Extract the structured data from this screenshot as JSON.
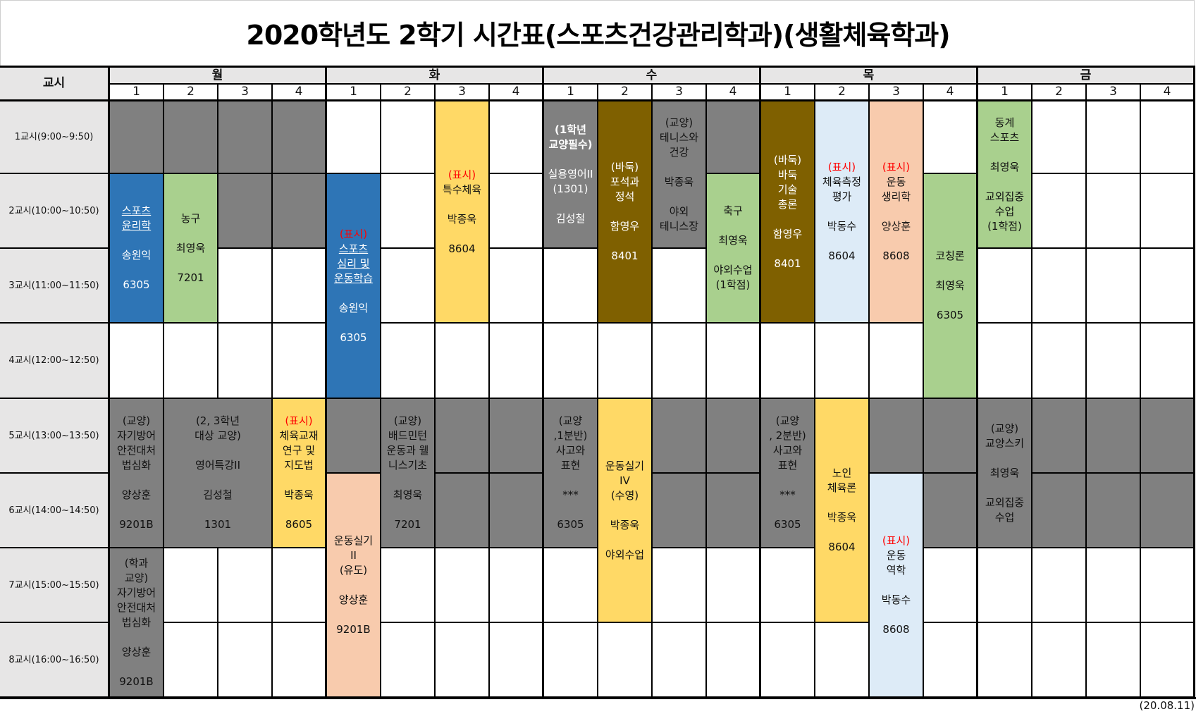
{
  "title": "2020학년도 2학기 시간표(스포츠건강관리학과)(생활체육학과)",
  "header": {
    "period_label": "교시",
    "days": [
      "월",
      "화",
      "수",
      "목",
      "금"
    ],
    "slots": [
      "1",
      "2",
      "3",
      "4"
    ]
  },
  "periods": [
    "1교시(9:00~9:50)",
    "2교시(10:00~10:50)",
    "3교시(11:00~11:50)",
    "4교시(12:00~12:50)",
    "5교시(13:00~13:50)",
    "6교시(14:00~14:50)",
    "7교시(15:00~15:50)",
    "8교시(16:00~16:50)"
  ],
  "colors": {
    "header_bg": "#e7e6e6",
    "unavailable_gray": "#808080",
    "blue": "#2e75b6",
    "green": "#a9d08e",
    "yellow": "#ffd966",
    "brown": "#7f6000",
    "light_blue": "#ddebf7",
    "salmon": "#f8cbad",
    "tag_red": "#ff0000"
  },
  "courses": [
    {
      "day": "월",
      "col": 1,
      "start": 2,
      "span": 2,
      "color": "blue",
      "tag": "",
      "name": "스포츠\n윤리학",
      "underline": true,
      "instructor": "송원익",
      "room": "6305"
    },
    {
      "day": "월",
      "col": 2,
      "start": 2,
      "span": 2,
      "color": "green",
      "tag": "",
      "name": "농구",
      "instructor": "최영욱",
      "room": "7201"
    },
    {
      "day": "화",
      "col": 1,
      "start": 2,
      "span": 3,
      "color": "blue",
      "tag": "(표시)",
      "name": "스포츠\n심리 및\n운동학습",
      "underline": true,
      "instructor": "송원익",
      "room": "6305"
    },
    {
      "day": "화",
      "col": 3,
      "start": 1,
      "span": 3,
      "color": "yellow",
      "tag": "(표시)",
      "name": "특수체육",
      "instructor": "박종욱",
      "room": "8604"
    },
    {
      "day": "수",
      "col": 1,
      "start": 1,
      "span": 2,
      "color": "gray-w",
      "tag": "",
      "note": "(1학년\n교양필수)",
      "name": "실용영어II\n(1301)",
      "instructor": "김성철",
      "room": ""
    },
    {
      "day": "수",
      "col": 2,
      "start": 1,
      "span": 3,
      "color": "brown",
      "tag": "",
      "name": "(바둑)\n포석과\n정석",
      "instructor": "함영우",
      "room": "8401"
    },
    {
      "day": "수",
      "col": 3,
      "start": 1,
      "span": 2,
      "color": "gray",
      "tag": "",
      "name": "(교양)\n테니스와\n건강",
      "instructor": "박종욱",
      "room": "야외\n테니스장"
    },
    {
      "day": "수",
      "col": 4,
      "start": 2,
      "span": 2,
      "color": "green",
      "tag": "",
      "name": "축구",
      "instructor": "최영욱",
      "room": "야외수업\n(1학점)"
    },
    {
      "day": "목",
      "col": 1,
      "start": 1,
      "span": 3,
      "color": "brown",
      "tag": "",
      "name": "(바둑)\n바둑\n기술\n총론",
      "instructor": "함영우",
      "room": "8401"
    },
    {
      "day": "목",
      "col": 2,
      "start": 1,
      "span": 3,
      "color": "lblue",
      "tag": "(표시)",
      "name": "체육측정\n평가",
      "instructor": "박동수",
      "room": "8604"
    },
    {
      "day": "목",
      "col": 3,
      "start": 1,
      "span": 3,
      "color": "salmon",
      "tag": "(표시)",
      "name": "운동\n생리학",
      "instructor": "양상훈",
      "room": "8608"
    },
    {
      "day": "목",
      "col": 4,
      "start": 2,
      "span": 3,
      "color": "green",
      "tag": "",
      "name": "코칭론",
      "instructor": "최영욱",
      "room": "6305"
    },
    {
      "day": "금",
      "col": 1,
      "start": 1,
      "span": 2,
      "color": "green",
      "tag": "",
      "name": "동계\n스포츠",
      "underline_part": "스포츠",
      "instructor": "최영욱",
      "room": "교외집중\n수업\n(1학점)"
    },
    {
      "day": "월",
      "col": 1,
      "start": 5,
      "span": 2,
      "color": "gray",
      "tag": "",
      "name": "(교양)\n자기방어\n안전대처\n법심화",
      "instructor": "양상훈",
      "room": "9201B"
    },
    {
      "day": "월",
      "col": 2,
      "colspan": 2,
      "start": 5,
      "span": 2,
      "color": "gray",
      "tag": "",
      "name": "(2, 3학년\n대상 교양)\n\n영어특강II",
      "instructor": "김성철",
      "room": "1301"
    },
    {
      "day": "월",
      "col": 4,
      "start": 5,
      "span": 2,
      "color": "yellow",
      "tag": "(표시)",
      "name": "체육교재\n연구 및\n지도법",
      "instructor": "박종욱",
      "room": "8605"
    },
    {
      "day": "월",
      "col": 1,
      "start": 7,
      "span": 2,
      "color": "gray",
      "tag": "",
      "name": "(학과\n교양)\n자기방어\n안전대처\n법심화",
      "instructor": "양상훈",
      "room": "9201B"
    },
    {
      "day": "화",
      "col": 1,
      "start": 6,
      "span": 3,
      "color": "salmon",
      "tag": "",
      "name": "운동실기\nII\n(유도)",
      "instructor": "양상훈",
      "room": "9201B"
    },
    {
      "day": "화",
      "col": 2,
      "start": 5,
      "span": 2,
      "color": "gray",
      "tag": "",
      "name": "(교양)\n배드민턴\n운동과 웰\n니스기초",
      "instructor": "최영욱",
      "room": "7201"
    },
    {
      "day": "수",
      "col": 1,
      "start": 5,
      "span": 2,
      "color": "gray",
      "tag": "",
      "name": "(교양\n,1분반)\n사고와\n표현",
      "instructor": "***",
      "room": "6305"
    },
    {
      "day": "수",
      "col": 2,
      "start": 5,
      "span": 3,
      "color": "yellow",
      "tag": "",
      "name": "운동실기\nIV\n(수영)",
      "instructor": "박종욱",
      "room": "야외수업"
    },
    {
      "day": "목",
      "col": 1,
      "start": 5,
      "span": 2,
      "color": "gray",
      "tag": "",
      "name": "(교양\n, 2분반)\n사고와\n표현",
      "instructor": "***",
      "room": "6305"
    },
    {
      "day": "목",
      "col": 2,
      "start": 5,
      "span": 3,
      "color": "yellow",
      "tag": "",
      "name": "노인\n체육론",
      "instructor": "박종욱",
      "room": "8604"
    },
    {
      "day": "목",
      "col": 3,
      "start": 6,
      "span": 3,
      "color": "lblue",
      "tag": "(표시)",
      "name": "운동\n역학",
      "instructor": "박동수",
      "room": "8608"
    },
    {
      "day": "금",
      "col": 1,
      "start": 5,
      "span": 2,
      "color": "gray",
      "tag": "",
      "name": "(교양)\n교양스키",
      "instructor": "최영욱",
      "room": "교외집중\n수업"
    }
  ],
  "unavailable_cells": [
    {
      "day": "월",
      "col": 1,
      "row": 1
    },
    {
      "day": "월",
      "col": 2,
      "row": 1
    },
    {
      "day": "월",
      "col": 3,
      "row": 1
    },
    {
      "day": "월",
      "col": 4,
      "row": 1
    },
    {
      "day": "월",
      "col": 3,
      "row": 2
    },
    {
      "day": "월",
      "col": 4,
      "row": 2
    },
    {
      "day": "수",
      "col": 4,
      "row": 1
    },
    {
      "day": "화",
      "col": 1,
      "row": 5
    },
    {
      "day": "화",
      "col": 3,
      "row": 5
    },
    {
      "day": "화",
      "col": 4,
      "row": 5
    },
    {
      "day": "화",
      "col": 3,
      "row": 6
    },
    {
      "day": "화",
      "col": 4,
      "row": 6
    },
    {
      "day": "수",
      "col": 3,
      "row": 5
    },
    {
      "day": "수",
      "col": 4,
      "row": 5
    },
    {
      "day": "수",
      "col": 3,
      "row": 6
    },
    {
      "day": "수",
      "col": 4,
      "row": 6
    },
    {
      "day": "목",
      "col": 3,
      "row": 5
    },
    {
      "day": "목",
      "col": 4,
      "row": 5
    },
    {
      "day": "목",
      "col": 4,
      "row": 6
    },
    {
      "day": "금",
      "col": 2,
      "row": 5
    },
    {
      "day": "금",
      "col": 3,
      "row": 5
    },
    {
      "day": "금",
      "col": 4,
      "row": 5
    },
    {
      "day": "금",
      "col": 2,
      "row": 6
    },
    {
      "day": "금",
      "col": 3,
      "row": 6
    },
    {
      "day": "금",
      "col": 4,
      "row": 6
    }
  ],
  "footer_date": "(20.08.11)"
}
